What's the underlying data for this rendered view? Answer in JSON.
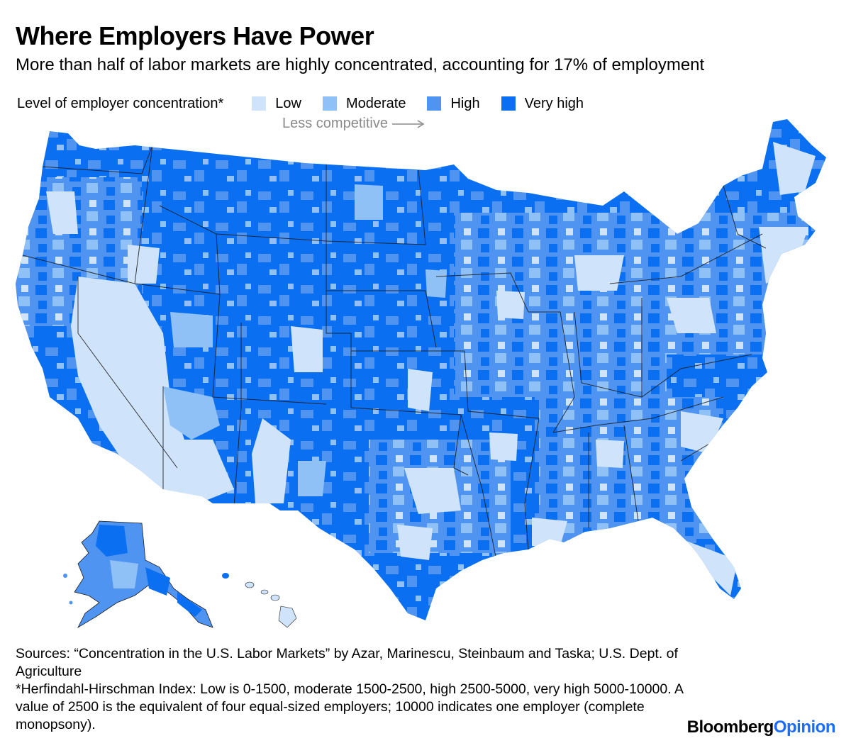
{
  "header": {
    "title": "Where Employers Have Power",
    "subtitle": "More than half of labor markets are highly concentrated, accounting for 17% of employment"
  },
  "legend": {
    "title": "Level of employer concentration*",
    "items": [
      {
        "label": "Low",
        "color": "#cfe4fb"
      },
      {
        "label": "Moderate",
        "color": "#8fc0f6"
      },
      {
        "label": "High",
        "color": "#4f94f0"
      },
      {
        "label": "Very high",
        "color": "#0a6ff0"
      }
    ],
    "direction_label": "Less competitive"
  },
  "map": {
    "regions": [
      "Contiguous United States",
      "Alaska",
      "Hawaii"
    ],
    "colors": {
      "low": "#cfe4fb",
      "moderate": "#8fc0f6",
      "high": "#4f94f0",
      "very_high": "#0a6ff0",
      "border": "#1b1b1b"
    }
  },
  "footer": {
    "sources": "Sources: “Concentration in the U.S. Labor Markets” by Azar, Marinescu, Steinbaum and Taska; U.S. Dept. of Agriculture",
    "note": "*Herfindahl-Hirschman Index: Low is 0-1500, moderate 1500-2500, high 2500-5000, very high 5000-10000. A value of 2500 is the equivalent of four equal-sized employers; 10000 indicates one employer (complete monopsony).",
    "brand_bold": "Bloomberg",
    "brand_accent": "Opinion"
  }
}
